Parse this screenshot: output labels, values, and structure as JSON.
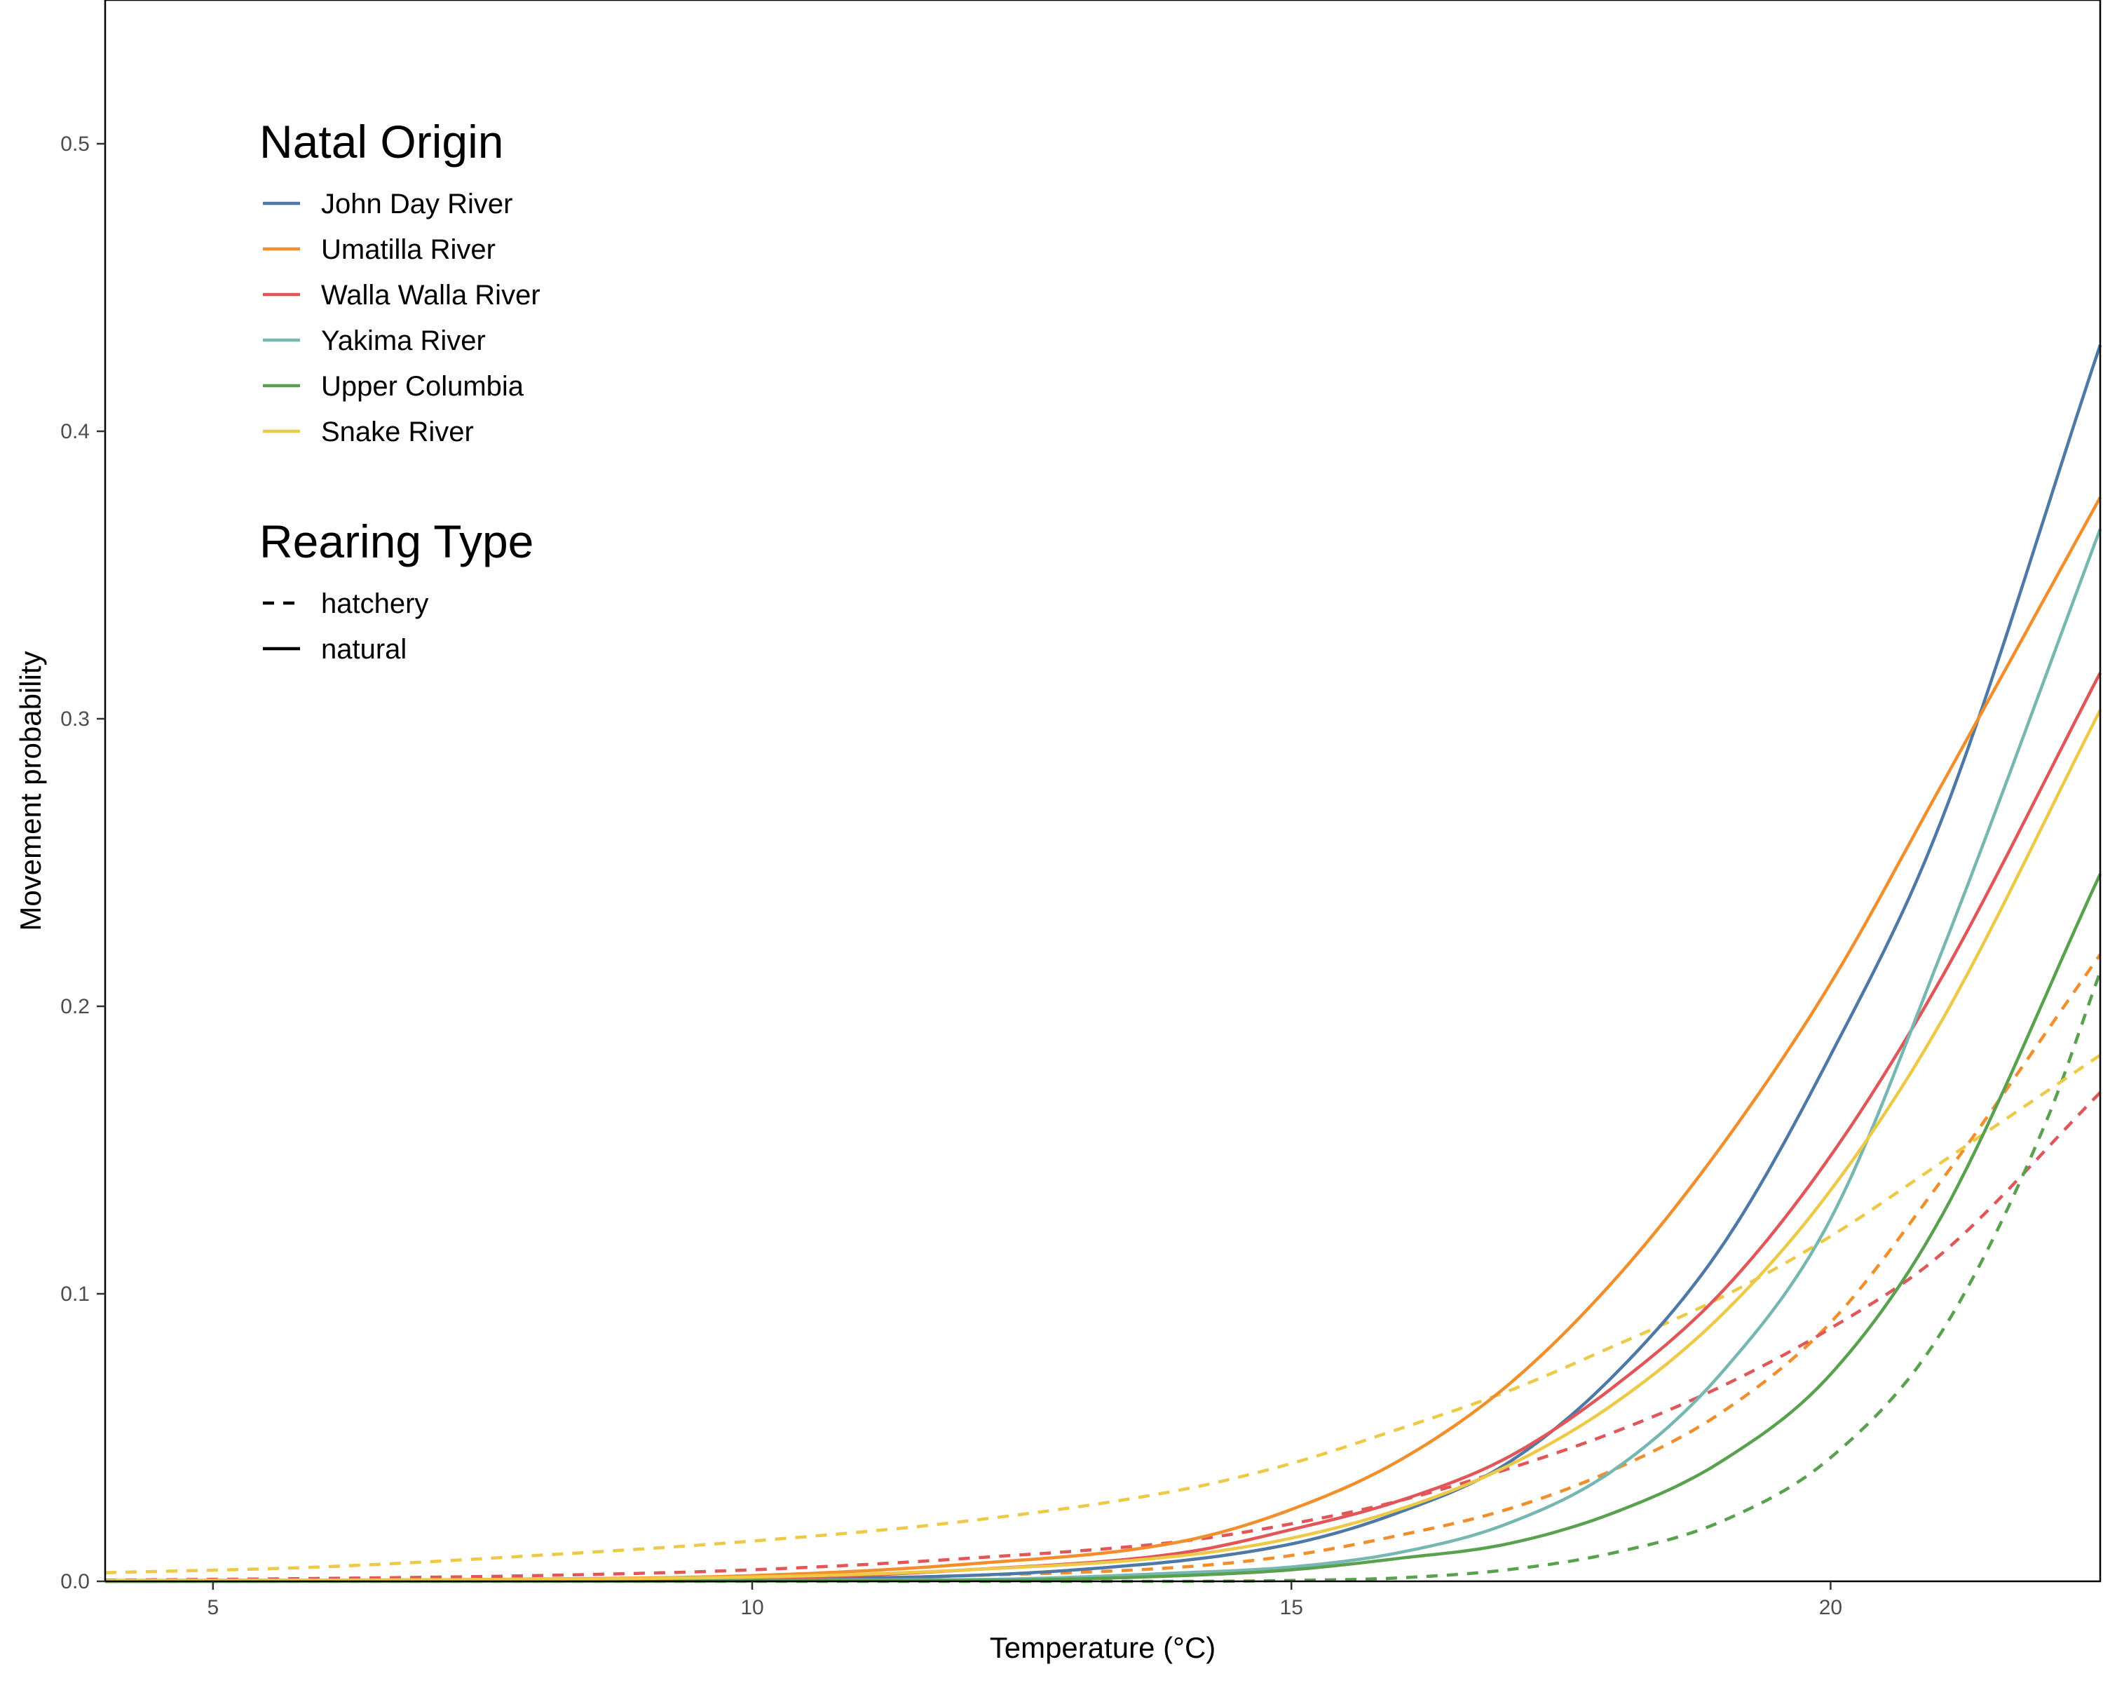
{
  "chart_data": {
    "type": "line",
    "xlabel": "Temperature (°C)",
    "ylabel": "Movement probability",
    "xlim": [
      4.0,
      22.5
    ],
    "ylim": [
      0.0,
      0.55
    ],
    "xticks": [
      5,
      10,
      15,
      20
    ],
    "yticks": [
      0.0,
      0.1,
      0.2,
      0.3,
      0.4,
      0.5
    ],
    "xtick_labels": [
      "5",
      "10",
      "15",
      "20"
    ],
    "ytick_labels": [
      "0.0",
      "0.1",
      "0.2",
      "0.3",
      "0.4",
      "0.5"
    ],
    "grid": false,
    "legend_position": "top-left",
    "legend_groups": [
      {
        "title": "Natal Origin",
        "entries": [
          {
            "label": "John Day River",
            "color": "#4e79a7",
            "dash": "solid"
          },
          {
            "label": "Umatilla River",
            "color": "#f28e2b",
            "dash": "solid"
          },
          {
            "label": "Walla Walla River",
            "color": "#e15759",
            "dash": "solid"
          },
          {
            "label": "Yakima River",
            "color": "#76b7b2",
            "dash": "solid"
          },
          {
            "label": "Upper Columbia",
            "color": "#59a14f",
            "dash": "solid"
          },
          {
            "label": "Snake River",
            "color": "#edc948",
            "dash": "solid"
          }
        ]
      },
      {
        "title": "Rearing Type",
        "entries": [
          {
            "label": "hatchery",
            "color": "#000000",
            "dash": "dashed"
          },
          {
            "label": "natural",
            "color": "#000000",
            "dash": "solid"
          }
        ]
      }
    ],
    "series": [
      {
        "origin": "John Day River",
        "rearing": "natural",
        "color": "#4e79a7",
        "dash": "solid",
        "x": [
          4,
          10,
          13,
          15,
          16,
          17,
          18,
          19,
          20,
          21,
          22.5
        ],
        "y": [
          0.0,
          0.0008,
          0.004,
          0.013,
          0.024,
          0.041,
          0.072,
          0.117,
          0.183,
          0.262,
          0.43
        ]
      },
      {
        "origin": "Umatilla River",
        "rearing": "natural",
        "color": "#f28e2b",
        "dash": "solid",
        "x": [
          4,
          8,
          10,
          12,
          14,
          15,
          16,
          17,
          18,
          19,
          20,
          21,
          22.5
        ],
        "y": [
          0.0003,
          0.0008,
          0.002,
          0.006,
          0.014,
          0.025,
          0.042,
          0.068,
          0.105,
          0.152,
          0.208,
          0.275,
          0.377
        ]
      },
      {
        "origin": "Walla Walla River",
        "rearing": "natural",
        "color": "#e15759",
        "dash": "solid",
        "x": [
          4,
          10,
          12,
          14,
          15,
          16,
          17,
          18,
          19,
          20,
          21,
          22.5
        ],
        "y": [
          0.0001,
          0.001,
          0.004,
          0.01,
          0.018,
          0.028,
          0.043,
          0.068,
          0.101,
          0.148,
          0.208,
          0.316
        ]
      },
      {
        "origin": "Yakima River",
        "rearing": "natural",
        "color": "#76b7b2",
        "dash": "solid",
        "x": [
          4,
          12,
          14,
          15,
          16,
          17,
          18,
          19,
          20,
          21,
          22.5
        ],
        "y": [
          0.0,
          0.0006,
          0.003,
          0.005,
          0.01,
          0.02,
          0.039,
          0.073,
          0.126,
          0.216,
          0.366
        ]
      },
      {
        "origin": "Upper Columbia",
        "rearing": "natural",
        "color": "#59a14f",
        "dash": "solid",
        "x": [
          4,
          12,
          14,
          15,
          16,
          17,
          18,
          19,
          20,
          21,
          22.5
        ],
        "y": [
          0.0,
          0.0003,
          0.002,
          0.004,
          0.008,
          0.013,
          0.024,
          0.042,
          0.072,
          0.125,
          0.246
        ]
      },
      {
        "origin": "Snake River",
        "rearing": "natural",
        "color": "#edc948",
        "dash": "solid",
        "x": [
          4,
          10,
          12,
          14,
          15,
          16,
          17,
          18,
          19,
          20,
          21,
          22.5
        ],
        "y": [
          0.0002,
          0.0015,
          0.004,
          0.009,
          0.015,
          0.025,
          0.04,
          0.062,
          0.093,
          0.136,
          0.193,
          0.303
        ]
      },
      {
        "origin": "Umatilla River",
        "rearing": "hatchery",
        "color": "#f28e2b",
        "dash": "dashed",
        "x": [
          4,
          10,
          12,
          14,
          15,
          16,
          17,
          18,
          19,
          20,
          21,
          22.5
        ],
        "y": [
          0.0,
          0.0005,
          0.002,
          0.005,
          0.009,
          0.016,
          0.025,
          0.039,
          0.059,
          0.09,
          0.138,
          0.218
        ]
      },
      {
        "origin": "Walla Walla River",
        "rearing": "hatchery",
        "color": "#e15759",
        "dash": "dashed",
        "x": [
          4,
          6,
          8,
          10,
          12,
          14,
          15,
          16,
          17,
          18,
          19,
          20,
          21,
          22.5
        ],
        "y": [
          0.0004,
          0.001,
          0.002,
          0.004,
          0.008,
          0.014,
          0.02,
          0.028,
          0.039,
          0.052,
          0.068,
          0.088,
          0.113,
          0.17
        ]
      },
      {
        "origin": "Upper Columbia",
        "rearing": "hatchery",
        "color": "#59a14f",
        "dash": "dashed",
        "x": [
          4,
          14,
          15,
          16,
          17,
          18,
          19,
          20,
          21,
          22,
          22.5
        ],
        "y": [
          0.0,
          0.0,
          0.0003,
          0.0012,
          0.004,
          0.01,
          0.021,
          0.043,
          0.085,
          0.16,
          0.212
        ]
      },
      {
        "origin": "Snake River",
        "rearing": "hatchery",
        "color": "#edc948",
        "dash": "dashed",
        "x": [
          4,
          6,
          8,
          10,
          12,
          14,
          15,
          16,
          17,
          18,
          19,
          20,
          21,
          22.5
        ],
        "y": [
          0.003,
          0.005,
          0.009,
          0.014,
          0.021,
          0.032,
          0.041,
          0.053,
          0.066,
          0.082,
          0.099,
          0.12,
          0.145,
          0.183
        ]
      }
    ]
  }
}
